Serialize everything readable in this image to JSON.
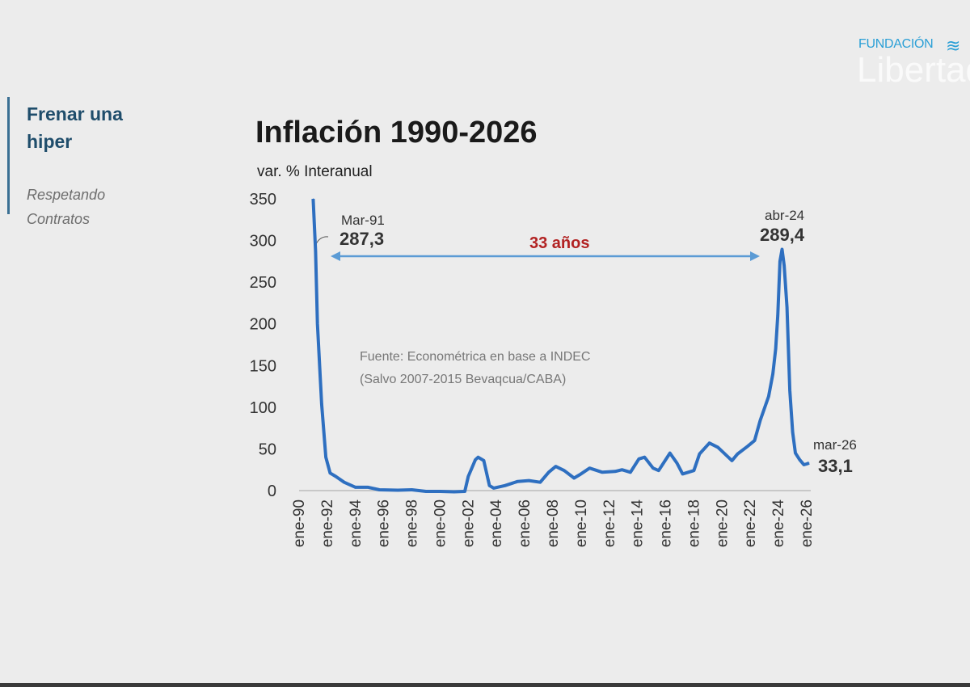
{
  "sidebar": {
    "title": "Frenar una hiper",
    "subtitle": "Respetando Contratos"
  },
  "logo": {
    "top": "FUNDACIÓN",
    "main": "Libertad"
  },
  "colors": {
    "line": "#2e6fc0",
    "arrow": "#5b9bd5",
    "annotation_span": "#b22222",
    "title": "#1a1a1a"
  },
  "chart_data": {
    "type": "line",
    "title": "Inflación 1990-2026",
    "ylabel": "var. % Interanual",
    "ylim": [
      0,
      350
    ],
    "yticks": [
      "0",
      "50",
      "100",
      "150",
      "200",
      "250",
      "300",
      "350"
    ],
    "xlim": [
      1990,
      2026
    ],
    "xticks": [
      "ene-90",
      "ene-92",
      "ene-94",
      "ene-96",
      "ene-98",
      "ene-00",
      "ene-02",
      "ene-04",
      "ene-06",
      "ene-08",
      "ene-10",
      "ene-12",
      "ene-14",
      "ene-16",
      "ene-18",
      "ene-20",
      "ene-22",
      "ene-24",
      "ene-26"
    ],
    "grid": false,
    "source_note": [
      "Fuente: Econométrica en base a INDEC",
      "(Salvo 2007-2015 Bevaqcua/CABA)"
    ],
    "annotations": {
      "start": {
        "label": "Mar-91",
        "value": "287,3"
      },
      "peak": {
        "label": "abr-24",
        "value": "289,4"
      },
      "end": {
        "label": "mar-26",
        "value": "33,1"
      },
      "span": "33 años"
    },
    "series": [
      {
        "x": [
          1991.0,
          1991.17,
          1991.3,
          1991.6,
          1991.9,
          1992.2,
          1992.6,
          1993.2,
          1994.0,
          1994.9,
          1995.7,
          1997.0,
          1998.0,
          1999.0,
          2000.0,
          2001.0,
          2001.75,
          2002.0,
          2002.5,
          2002.7,
          2003.1,
          2003.5,
          2003.8,
          2004.6,
          2005.5,
          2006.3,
          2007.1,
          2007.7,
          2008.2,
          2008.8,
          2009.5,
          2009.9,
          2010.6,
          2011.5,
          2012.4,
          2012.9,
          2013.5,
          2014.1,
          2014.5,
          2015.1,
          2015.5,
          2016.3,
          2016.8,
          2017.2,
          2018.0,
          2018.4,
          2019.1,
          2019.7,
          2020.7,
          2021.1,
          2021.8,
          2022.3,
          2022.7,
          2023.3,
          2023.6,
          2023.8,
          2023.95,
          2024.1,
          2024.25,
          2024.4,
          2024.6,
          2024.8,
          2025.0,
          2025.2,
          2025.5,
          2025.8,
          2026.0,
          2026.17
        ],
        "y": [
          350,
          287.3,
          200,
          104,
          40,
          21,
          17,
          10,
          4,
          4,
          1,
          0.5,
          1,
          -1,
          -1,
          -1.5,
          -1,
          17,
          37,
          40,
          36,
          6,
          3,
          6,
          11,
          12,
          10,
          22,
          29,
          24,
          15,
          19,
          27,
          22,
          23,
          25,
          22,
          38,
          40,
          27,
          24,
          45,
          33,
          20,
          24,
          44,
          57,
          52,
          36,
          44,
          53,
          60,
          84,
          113,
          140,
          170,
          210,
          275,
          289.4,
          270,
          220,
          120,
          70,
          45,
          37,
          31,
          32,
          33.1
        ]
      }
    ]
  }
}
